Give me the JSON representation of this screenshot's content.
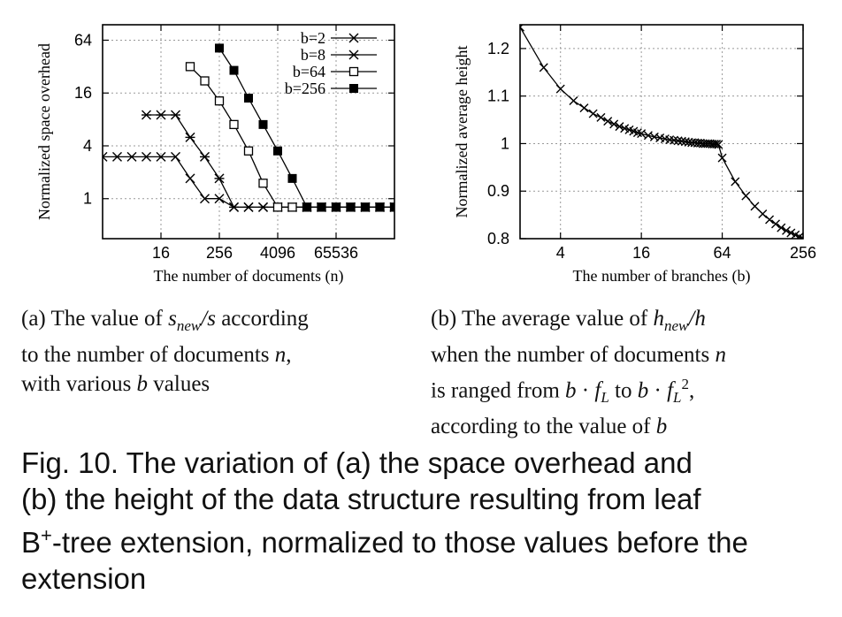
{
  "chart_data": [
    {
      "type": "line",
      "ylabel": "Normalized space overhead",
      "xlabel": "The number of documents (n)",
      "x_scale": "log2",
      "y_scale": "log2",
      "xlim": [
        1,
        1048576
      ],
      "ylim": [
        0.35,
        96
      ],
      "x_ticks": [
        16,
        256,
        4096,
        65536
      ],
      "x_tick_labels": [
        "16",
        "256",
        "4096",
        "65536"
      ],
      "y_ticks": [
        1,
        4,
        16,
        64
      ],
      "y_tick_labels": [
        "1",
        "4",
        "16",
        "64"
      ],
      "grid": true,
      "legend_position": "top-right",
      "series": [
        {
          "name": "b=2",
          "marker": "x",
          "x": [
            1,
            2,
            4,
            8,
            16,
            32,
            64,
            128,
            256,
            512,
            1024,
            2048,
            4096,
            8192,
            16384,
            32768,
            65536,
            131072,
            262144,
            524288,
            1048576
          ],
          "y": [
            3,
            3,
            3,
            3,
            3,
            3,
            1.7,
            1,
            1,
            0.8,
            0.8,
            0.8,
            0.8,
            0.8,
            0.8,
            0.8,
            0.8,
            0.8,
            0.8,
            0.8,
            0.8
          ]
        },
        {
          "name": "b=8",
          "marker": "*",
          "x": [
            8,
            16,
            32,
            64,
            128,
            256,
            512,
            1024,
            2048,
            4096,
            8192,
            16384,
            32768,
            65536,
            131072,
            262144,
            524288,
            1048576
          ],
          "y": [
            9,
            9,
            9,
            5,
            3,
            1.7,
            0.8,
            0.8,
            0.8,
            0.8,
            0.8,
            0.8,
            0.8,
            0.8,
            0.8,
            0.8,
            0.8,
            0.8
          ]
        },
        {
          "name": "b=64",
          "marker": "open-square",
          "x": [
            64,
            128,
            256,
            512,
            1024,
            2048,
            4096,
            8192,
            16384,
            32768,
            65536,
            131072,
            262144,
            524288,
            1048576
          ],
          "y": [
            32,
            22,
            13,
            7,
            3.5,
            1.5,
            0.8,
            0.8,
            0.8,
            0.8,
            0.8,
            0.8,
            0.8,
            0.8,
            0.8
          ]
        },
        {
          "name": "b=256",
          "marker": "filled-square",
          "x": [
            256,
            512,
            1024,
            2048,
            4096,
            8192,
            16384,
            32768,
            65536,
            131072,
            262144,
            524288,
            1048576
          ],
          "y": [
            52,
            29,
            14,
            7,
            3.5,
            1.7,
            0.8,
            0.8,
            0.8,
            0.8,
            0.8,
            0.8,
            0.8
          ]
        }
      ]
    },
    {
      "type": "line",
      "ylabel": "Normalized average height",
      "xlabel": "The number of branches (b)",
      "x_scale": "log2",
      "y_scale": "linear",
      "xlim": [
        2,
        256
      ],
      "ylim": [
        0.8,
        1.25
      ],
      "x_ticks": [
        4,
        16,
        64,
        256
      ],
      "x_tick_labels": [
        "4",
        "16",
        "64",
        "256"
      ],
      "y_ticks": [
        0.8,
        0.9,
        1,
        1.1,
        1.2
      ],
      "y_tick_labels": [
        "0.8",
        "0.9",
        "1",
        "1.1",
        "1.2"
      ],
      "grid": true,
      "series": [
        {
          "marker": "x",
          "x": [
            2,
            3,
            4,
            5,
            6,
            7,
            8,
            9,
            10,
            11,
            12,
            13,
            14,
            15,
            16,
            18,
            20,
            22,
            24,
            26,
            28,
            30,
            32,
            34,
            36,
            38,
            40,
            42,
            44,
            46,
            48,
            50,
            52,
            54,
            56,
            58,
            60,
            64,
            80,
            96,
            112,
            128,
            144,
            160,
            176,
            192,
            208,
            224,
            240,
            256
          ],
          "y": [
            1.245,
            1.16,
            1.115,
            1.09,
            1.075,
            1.063,
            1.055,
            1.047,
            1.041,
            1.036,
            1.032,
            1.029,
            1.026,
            1.023,
            1.021,
            1.017,
            1.014,
            1.012,
            1.01,
            1.008,
            1.007,
            1.006,
            1.005,
            1.004,
            1.003,
            1.002,
            1.002,
            1.001,
            1.001,
            1.0,
            1.0,
            1.0,
            1.0,
            0.999,
            0.999,
            0.999,
            0.998,
            0.97,
            0.92,
            0.89,
            0.868,
            0.852,
            0.84,
            0.831,
            0.823,
            0.817,
            0.812,
            0.808,
            0.804,
            0.8
          ]
        }
      ]
    }
  ],
  "subcaptions": {
    "a": [
      "(a) The value of s_new/s according",
      "to the number of documents n,",
      "with various b values"
    ],
    "b": [
      "(b) The average value of h_new/h",
      "when the number of documents n",
      "is ranged from b · f_L to b · f_L^2,",
      "according to the value of b"
    ]
  },
  "caption": {
    "lines": [
      "Fig. 10.  The variation of (a) the space overhead and",
      "(b) the height of the data structure resulting from leaf",
      "B+-tree extension, normalized to those values before the",
      "extension"
    ]
  }
}
